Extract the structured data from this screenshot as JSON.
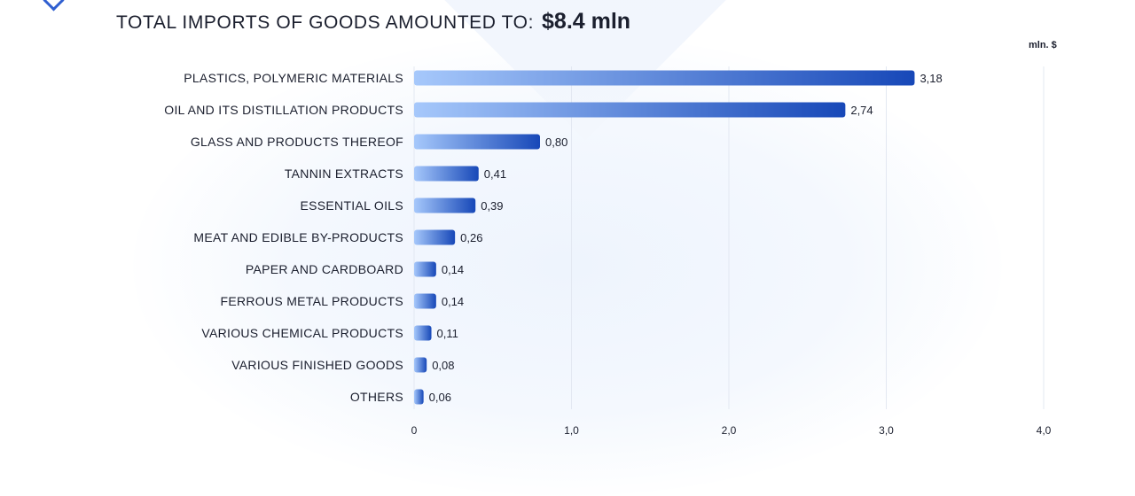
{
  "header": {
    "title_text": "TOTAL IMPORTS OF GOODS AMOUNTED TO:",
    "title_value": "$8.4  mln"
  },
  "unit_label": "mln. $",
  "colors": {
    "bar_start": "#a6c8fb",
    "bar_end": "#1748b8",
    "grid": "#e3e8f2",
    "text": "#1b1f2e"
  },
  "chart_data": {
    "type": "bar",
    "orientation": "horizontal",
    "title": "TOTAL IMPORTS OF GOODS AMOUNTED TO: $8.4  mln",
    "xlabel": "",
    "ylabel": "",
    "unit": "mln. $",
    "xlim": [
      0,
      4
    ],
    "grid": true,
    "legend": "none",
    "categories": [
      "PLASTICS, POLYMERIC MATERIALS",
      "OIL AND ITS DISTILLATION PRODUCTS",
      "GLASS AND PRODUCTS THEREOF",
      "TANNIN EXTRACTS",
      "ESSENTIAL OILS",
      "MEAT AND EDIBLE BY-PRODUCTS",
      "PAPER AND CARDBOARD",
      "FERROUS METAL PRODUCTS",
      "VARIOUS CHEMICAL PRODUCTS",
      "VARIOUS FINISHED GOODS",
      "OTHERS"
    ],
    "values": [
      3.18,
      2.74,
      0.8,
      0.41,
      0.39,
      0.26,
      0.14,
      0.14,
      0.11,
      0.08,
      0.06
    ],
    "value_labels": [
      "3,18",
      "2,74",
      "0,80",
      "0,41",
      "0,39",
      "0,26",
      "0,14",
      "0,14",
      "0,11",
      "0,08",
      "0,06"
    ],
    "x_ticks": [
      0,
      1,
      2,
      3,
      4
    ],
    "x_tick_labels": [
      "0",
      "1,0",
      "2,0",
      "3,0",
      "4,0"
    ]
  }
}
